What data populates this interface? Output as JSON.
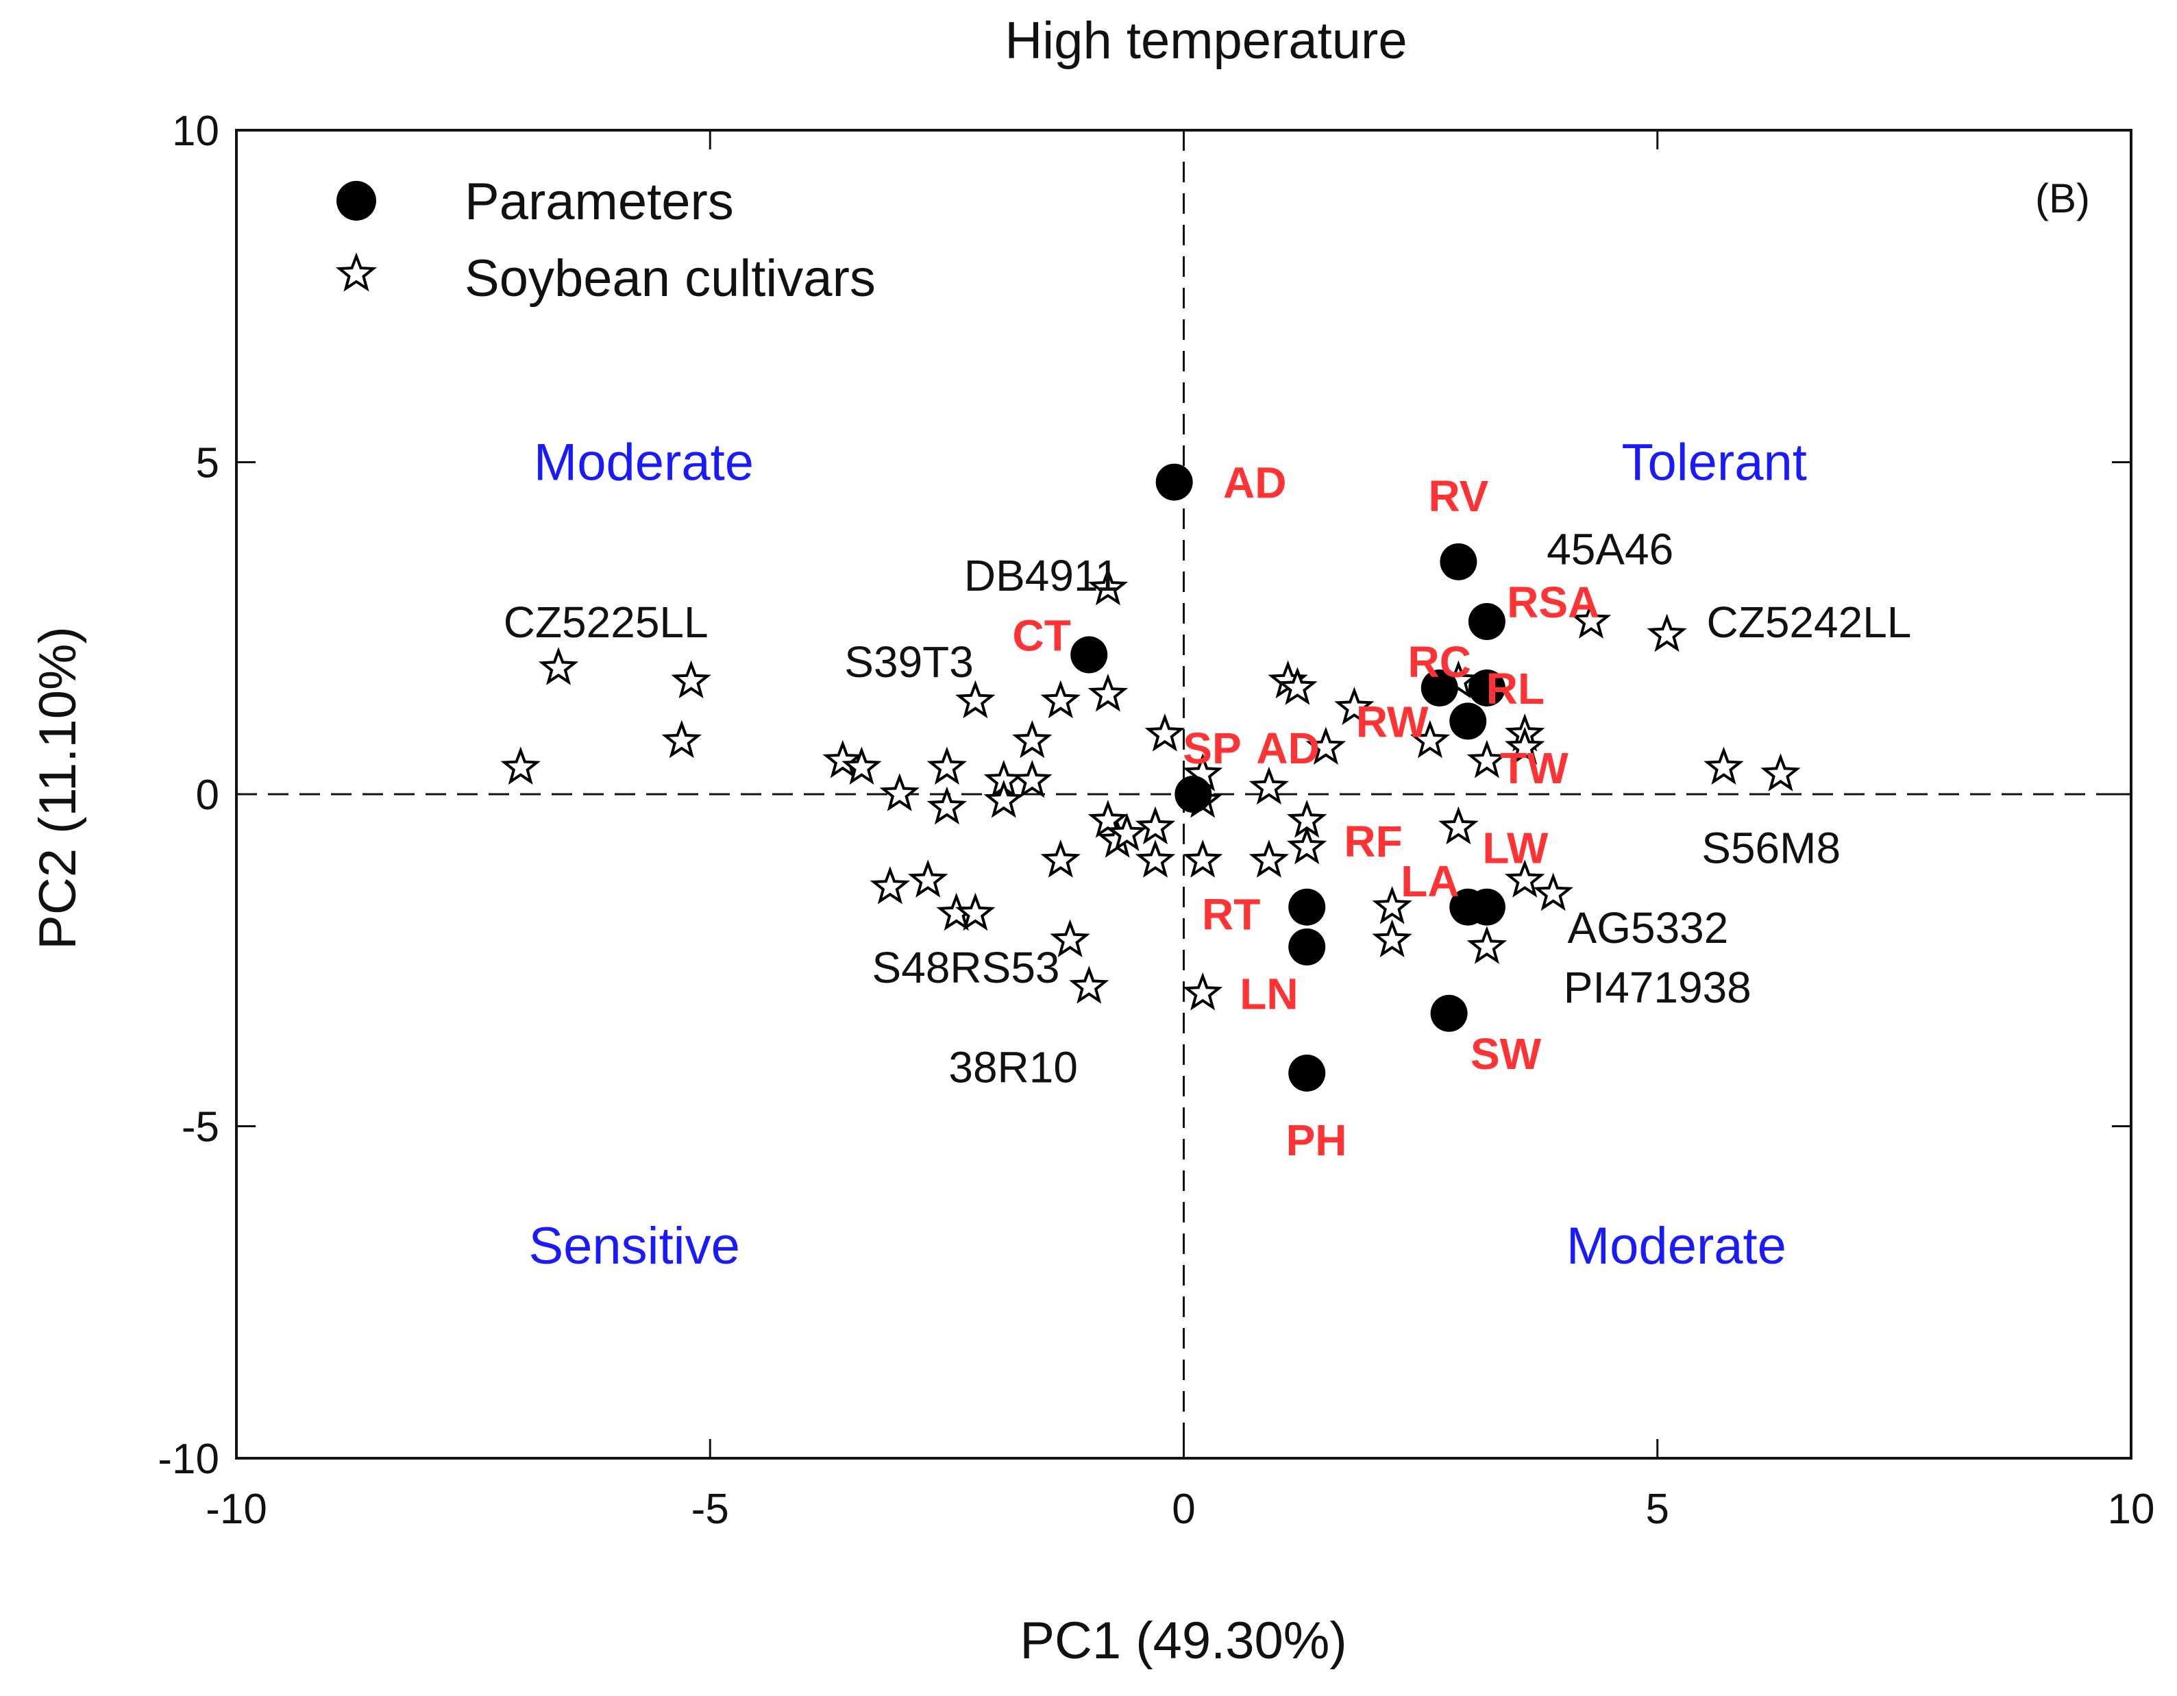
{
  "chart_data": {
    "type": "scatter",
    "title": "High temperature",
    "panel_label": "(B)",
    "xlabel": "PC1 (49.30%)",
    "ylabel": "PC2 (11.10%)",
    "xlim": [
      -10,
      10
    ],
    "ylim": [
      -10,
      10
    ],
    "x_ticks": [
      -10,
      -5,
      0,
      5,
      10
    ],
    "y_ticks": [
      -10,
      -5,
      0,
      5,
      10
    ],
    "legend": {
      "position": "top-left",
      "entries": [
        {
          "name": "Parameters",
          "marker": "filled-circle"
        },
        {
          "name": "Soybean cultivars",
          "marker": "open-star"
        }
      ]
    },
    "reference_lines": {
      "x": 0,
      "y": 0,
      "style": "dashed"
    },
    "quadrant_labels": [
      {
        "text": "Moderate",
        "quadrant": "top-left",
        "x": -5.7,
        "y": 5.0
      },
      {
        "text": "Tolerant",
        "quadrant": "top-right",
        "x": 5.6,
        "y": 5.0
      },
      {
        "text": "Sensitive",
        "quadrant": "bottom-left",
        "x": -5.8,
        "y": -6.8
      },
      {
        "text": "Moderate",
        "quadrant": "bottom-right",
        "x": 5.2,
        "y": -6.8
      }
    ],
    "series": [
      {
        "name": "Parameters",
        "points": [
          {
            "x": -0.1,
            "y": 4.7
          },
          {
            "x": 2.9,
            "y": 3.5
          },
          {
            "x": 3.2,
            "y": 2.6
          },
          {
            "x": -1.0,
            "y": 2.1
          },
          {
            "x": 2.7,
            "y": 1.6
          },
          {
            "x": 3.2,
            "y": 1.6
          },
          {
            "x": 3.0,
            "y": 1.1
          },
          {
            "x": 0.1,
            "y": 0.0
          },
          {
            "x": 1.3,
            "y": -1.7
          },
          {
            "x": 1.3,
            "y": -2.3
          },
          {
            "x": 3.0,
            "y": -1.7
          },
          {
            "x": 3.2,
            "y": -1.7
          },
          {
            "x": 2.8,
            "y": -3.3
          },
          {
            "x": 1.3,
            "y": -4.2
          }
        ]
      },
      {
        "name": "Soybean cultivars",
        "points": [
          {
            "x": -7.0,
            "y": 0.4
          },
          {
            "x": -6.6,
            "y": 1.9
          },
          {
            "x": -5.2,
            "y": 1.7
          },
          {
            "x": -5.3,
            "y": 0.8
          },
          {
            "x": -3.6,
            "y": 0.5
          },
          {
            "x": -3.4,
            "y": 0.4
          },
          {
            "x": -3.0,
            "y": 0.0
          },
          {
            "x": -2.5,
            "y": 0.4
          },
          {
            "x": -2.5,
            "y": -0.2
          },
          {
            "x": -2.2,
            "y": 1.4
          },
          {
            "x": -1.9,
            "y": 0.2
          },
          {
            "x": -1.9,
            "y": -0.1
          },
          {
            "x": -1.6,
            "y": 0.2
          },
          {
            "x": -1.6,
            "y": 0.8
          },
          {
            "x": -1.3,
            "y": 1.4
          },
          {
            "x": -0.8,
            "y": 1.5
          },
          {
            "x": -0.8,
            "y": 3.1
          },
          {
            "x": -3.1,
            "y": -1.4
          },
          {
            "x": -2.7,
            "y": -1.3
          },
          {
            "x": -2.4,
            "y": -1.8
          },
          {
            "x": -2.2,
            "y": -1.8
          },
          {
            "x": -1.3,
            "y": -1.0
          },
          {
            "x": -0.8,
            "y": -0.4
          },
          {
            "x": -0.7,
            "y": -0.7
          },
          {
            "x": -0.6,
            "y": -0.6
          },
          {
            "x": -0.3,
            "y": -0.5
          },
          {
            "x": -0.3,
            "y": -1.0
          },
          {
            "x": -1.2,
            "y": -2.2
          },
          {
            "x": -1.0,
            "y": -2.9
          },
          {
            "x": -0.2,
            "y": 0.9
          },
          {
            "x": 0.2,
            "y": 0.3
          },
          {
            "x": 0.2,
            "y": -0.1
          },
          {
            "x": 0.2,
            "y": -1.0
          },
          {
            "x": 0.2,
            "y": -3.0
          },
          {
            "x": 0.9,
            "y": 0.1
          },
          {
            "x": 0.9,
            "y": -1.0
          },
          {
            "x": 1.1,
            "y": 1.7
          },
          {
            "x": 1.2,
            "y": 1.6
          },
          {
            "x": 1.3,
            "y": -0.4
          },
          {
            "x": 1.3,
            "y": -0.8
          },
          {
            "x": 1.5,
            "y": 0.7
          },
          {
            "x": 1.8,
            "y": 1.3
          },
          {
            "x": 2.2,
            "y": -1.7
          },
          {
            "x": 2.2,
            "y": -2.2
          },
          {
            "x": 2.6,
            "y": 0.8
          },
          {
            "x": 2.9,
            "y": -0.5
          },
          {
            "x": 2.9,
            "y": 1.7
          },
          {
            "x": 3.2,
            "y": 0.5
          },
          {
            "x": 3.2,
            "y": -2.3
          },
          {
            "x": 3.6,
            "y": 0.9
          },
          {
            "x": 3.6,
            "y": 0.7
          },
          {
            "x": 3.6,
            "y": -1.3
          },
          {
            "x": 3.9,
            "y": -1.5
          },
          {
            "x": 4.3,
            "y": 2.6
          },
          {
            "x": 5.1,
            "y": 2.4
          },
          {
            "x": 5.7,
            "y": 0.4
          },
          {
            "x": 6.3,
            "y": 0.3
          }
        ]
      }
    ],
    "parameter_labels": [
      {
        "text": "AD",
        "x": 0.75,
        "y": 4.7
      },
      {
        "text": "RV",
        "x": 2.9,
        "y": 4.5
      },
      {
        "text": "RSA",
        "x": 3.9,
        "y": 2.9
      },
      {
        "text": "CT",
        "x": -1.5,
        "y": 2.4
      },
      {
        "text": "RC",
        "x": 2.7,
        "y": 2.0
      },
      {
        "text": "RL",
        "x": 3.5,
        "y": 1.6
      },
      {
        "text": "RW",
        "x": 2.2,
        "y": 1.1
      },
      {
        "text": "SP",
        "x": 0.3,
        "y": 0.7
      },
      {
        "text": "AD",
        "x": 1.1,
        "y": 0.7
      },
      {
        "text": "TW",
        "x": 3.7,
        "y": 0.4
      },
      {
        "text": "RF",
        "x": 2.0,
        "y": -0.7
      },
      {
        "text": "LW",
        "x": 3.5,
        "y": -0.8
      },
      {
        "text": "LA",
        "x": 2.6,
        "y": -1.3
      },
      {
        "text": "RT",
        "x": 0.5,
        "y": -1.8
      },
      {
        "text": "LN",
        "x": 0.9,
        "y": -3.0
      },
      {
        "text": "SW",
        "x": 3.4,
        "y": -3.9
      },
      {
        "text": "PH",
        "x": 1.4,
        "y": -5.2
      }
    ],
    "cultivar_labels": [
      {
        "text": "CZ5225LL",
        "x": -6.1,
        "y": 2.6
      },
      {
        "text": "DB4911",
        "x": -1.5,
        "y": 3.3
      },
      {
        "text": "S39T3",
        "x": -2.9,
        "y": 2.0
      },
      {
        "text": "45A46",
        "x": 4.5,
        "y": 3.7
      },
      {
        "text": "CZ5242LL",
        "x": 6.6,
        "y": 2.6
      },
      {
        "text": "S56M8",
        "x": 6.2,
        "y": -0.8
      },
      {
        "text": "AG5332",
        "x": 4.9,
        "y": -2.0
      },
      {
        "text": "PI471938",
        "x": 5.0,
        "y": -2.9
      },
      {
        "text": "S48RS53",
        "x": -2.3,
        "y": -2.6
      },
      {
        "text": "38R10",
        "x": -1.8,
        "y": -4.1
      }
    ]
  }
}
